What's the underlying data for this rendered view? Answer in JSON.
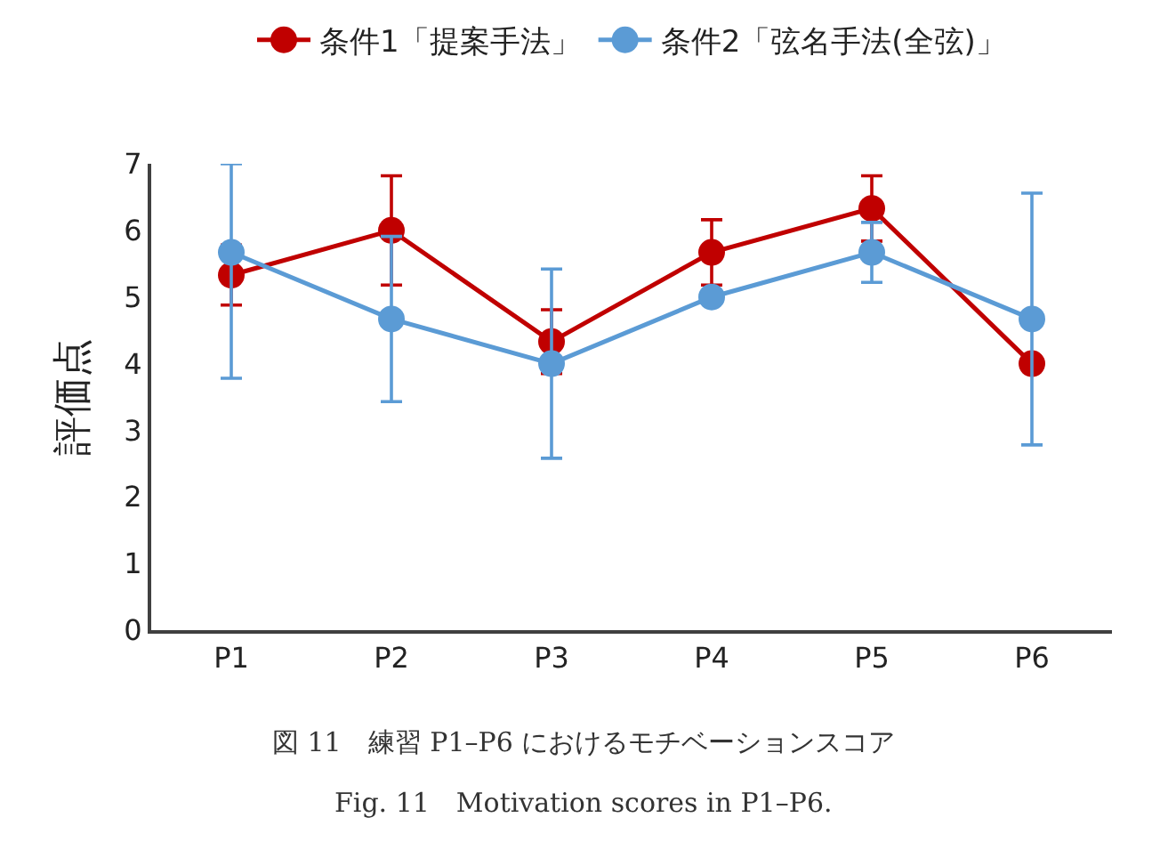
{
  "chart_data": {
    "type": "line",
    "ylabel": "評価点",
    "categories": [
      "P1",
      "P2",
      "P3",
      "P4",
      "P5",
      "P6"
    ],
    "series": [
      {
        "name": "条件1「提案手法」",
        "color": "#c00000",
        "values": [
          5.33,
          6.0,
          4.33,
          5.67,
          6.33,
          4.0
        ],
        "errors": [
          0.45,
          0.82,
          0.48,
          0.49,
          0.49,
          null
        ]
      },
      {
        "name": "条件2「弦名手法(全弦)」",
        "color": "#5b9bd5",
        "values": [
          5.67,
          4.67,
          4.0,
          5.0,
          5.67,
          4.67
        ],
        "errors": [
          [
            3.78,
            7.0
          ],
          1.24,
          1.42,
          null,
          0.45,
          1.89
        ]
      }
    ],
    "ylim": [
      0,
      7
    ],
    "yticks": [
      0,
      1,
      2,
      3,
      4,
      5,
      6,
      7
    ],
    "legend": "top",
    "marker": "circle",
    "line_style": "solid",
    "annotations": [
      "図 11　練習 P1–P6 におけるモチベーションスコア",
      "Fig. 11　Motivation scores in P1–P6."
    ]
  }
}
